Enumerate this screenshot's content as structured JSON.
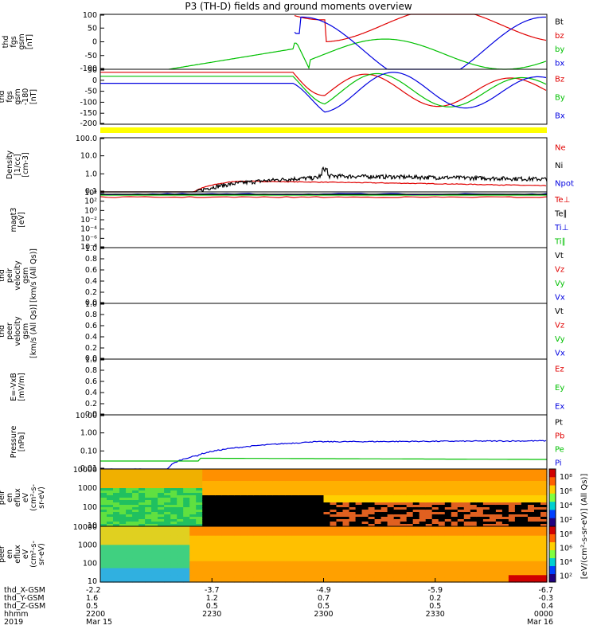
{
  "title": "P3 (TH-D) fields and ground moments overview",
  "colors": {
    "black": "#000000",
    "red": "#e00000",
    "green": "#00c000",
    "blue": "#0000e0",
    "yellow": "#ffff00"
  },
  "chart_data": [
    {
      "type": "line",
      "ylabel": [
        "thd",
        "fgs",
        "gsm",
        "[nT]"
      ],
      "yticks": [
        "100",
        "50",
        "0",
        "-50",
        "-100"
      ],
      "ylim": [
        -100,
        100
      ],
      "legend": [
        {
          "name": "Bt",
          "color": "black"
        },
        {
          "name": "bz",
          "color": "red"
        },
        {
          "name": "by",
          "color": "green"
        },
        {
          "name": "bx",
          "color": "blue"
        }
      ]
    },
    {
      "type": "line",
      "ylabel": [
        "thd",
        "fgs",
        "gsm",
        "-180",
        "[nT]"
      ],
      "yticks": [
        "50",
        "0",
        "-50",
        "-100",
        "-150",
        "-200"
      ],
      "ylim": [
        -225,
        50
      ],
      "legend": [
        {
          "name": "Bz",
          "color": "red"
        },
        {
          "name": "By",
          "color": "green"
        },
        {
          "name": "Bx",
          "color": "blue"
        }
      ]
    },
    {
      "type": "line",
      "ylabel": [
        "Density",
        "[1/cc]",
        "[cm-3]"
      ],
      "yticks": [
        "100.0",
        "10.0",
        "1.0",
        "0.1"
      ],
      "log": true,
      "legend": [
        {
          "name": "Ne",
          "color": "red"
        },
        {
          "name": "Ni",
          "color": "black"
        },
        {
          "name": "Npot",
          "color": "blue"
        }
      ]
    },
    {
      "type": "line",
      "ylabel": [
        "magt3",
        "[eV]"
      ],
      "yticks": [
        "10⁴",
        "10²",
        "10⁰",
        "10⁻²",
        "10⁻⁴",
        "10⁻⁶",
        "10⁻⁸"
      ],
      "log": true,
      "legend": [
        {
          "name": "Te⊥",
          "color": "red"
        },
        {
          "name": "Te∥",
          "color": "black"
        },
        {
          "name": "Ti⊥",
          "color": "blue"
        },
        {
          "name": "Ti∥",
          "color": "green"
        }
      ]
    },
    {
      "type": "line",
      "ylabel": [
        "thd",
        "peir",
        "velocity",
        "gsm",
        "[km/s (All Qs)]"
      ],
      "yticks": [
        "1.0",
        "0.8",
        "0.6",
        "0.4",
        "0.2",
        "0.0"
      ],
      "ylim": [
        0,
        1
      ],
      "legend": [
        {
          "name": "Vt",
          "color": "black"
        },
        {
          "name": "Vz",
          "color": "red"
        },
        {
          "name": "Vy",
          "color": "green"
        },
        {
          "name": "Vx",
          "color": "blue"
        }
      ]
    },
    {
      "type": "line",
      "ylabel": [
        "thd",
        "peer",
        "velocity",
        "gsm",
        "[km/s (All Qs)]"
      ],
      "yticks": [
        "1.0",
        "0.8",
        "0.6",
        "0.4",
        "0.2",
        "0.0"
      ],
      "ylim": [
        0,
        1
      ],
      "legend": [
        {
          "name": "Vt",
          "color": "black"
        },
        {
          "name": "Vz",
          "color": "red"
        },
        {
          "name": "Vy",
          "color": "green"
        },
        {
          "name": "Vx",
          "color": "blue"
        }
      ]
    },
    {
      "type": "line",
      "ylabel": [
        "E=-VxB",
        "[mV/m]"
      ],
      "yticks": [
        "1.0",
        "0.8",
        "0.6",
        "0.4",
        "0.2",
        "0.0"
      ],
      "ylim": [
        0,
        1
      ],
      "legend": [
        {
          "name": "Ez",
          "color": "red"
        },
        {
          "name": "Ey",
          "color": "green"
        },
        {
          "name": "Ex",
          "color": "blue"
        }
      ]
    },
    {
      "type": "line",
      "ylabel": [
        "Pressure",
        "[nPa]"
      ],
      "yticks": [
        "10.00",
        "1.00",
        "0.10",
        "0.01"
      ],
      "log": true,
      "legend": [
        {
          "name": "Pt",
          "color": "black"
        },
        {
          "name": "Pb",
          "color": "red"
        },
        {
          "name": "Pe",
          "color": "green"
        },
        {
          "name": "Pi",
          "color": "blue"
        }
      ]
    },
    {
      "type": "heatmap",
      "ylabel": [
        "thd",
        "peir",
        "en",
        "eflux",
        "eV",
        "(cm²-s-",
        "sr-eV)"
      ],
      "yticks": [
        "10000",
        "1000",
        "100",
        "10"
      ],
      "colorbar_ticks": [
        "10⁸",
        "10⁶",
        "10⁴",
        "10²"
      ],
      "colorbar_label": "[eV/(cm²-s-sr-eV)] (All Qs)]"
    },
    {
      "type": "heatmap",
      "ylabel": [
        "thd",
        "peer",
        "en",
        "eflux",
        "eV",
        "(cm²-s-",
        "sr-eV)"
      ],
      "yticks": [
        "10000",
        "1000",
        "100",
        "10"
      ],
      "colorbar_ticks": [
        "10⁸",
        "10⁶",
        "10⁴",
        "10²"
      ],
      "colorbar_label": "[eV/(cm²-s-sr-eV)]"
    }
  ],
  "xaxis": {
    "rows": [
      {
        "label": "thd_X-GSM",
        "values": [
          "-2.2",
          "-3.7",
          "-4.9",
          "-5.9",
          "-6.7"
        ]
      },
      {
        "label": "thd_Y-GSM",
        "values": [
          "1.6",
          "1.2",
          "0.7",
          "0.2",
          "-0.3"
        ]
      },
      {
        "label": "thd_Z-GSM",
        "values": [
          "0.5",
          "0.5",
          "0.5",
          "0.5",
          "0.4"
        ]
      },
      {
        "label": "hhmm",
        "values": [
          "2200",
          "2230",
          "2300",
          "2330",
          "0000"
        ]
      },
      {
        "label": "2019",
        "values": [
          "Mar 15",
          "",
          "",
          "",
          "Mar 16"
        ]
      }
    ]
  }
}
